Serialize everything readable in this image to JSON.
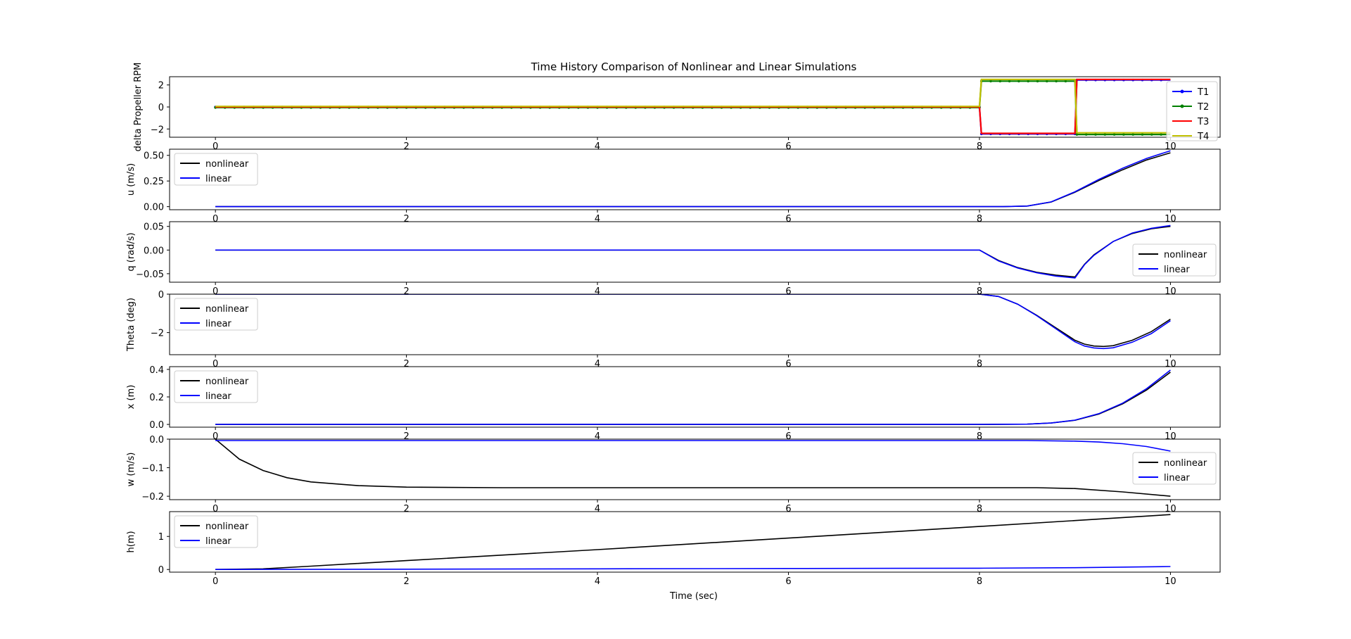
{
  "figure": {
    "title": "Time History Comparison of Nonlinear and Linear Simulations",
    "xlabel": "Time (sec)"
  },
  "chart_data": [
    {
      "type": "line",
      "ylabel": "delta Propeller RPM",
      "xlim": [
        -0.48,
        10.52
      ],
      "ylim": [
        -2.75,
        2.75
      ],
      "xticks": [
        0,
        2,
        4,
        6,
        8,
        10
      ],
      "yticks": [
        2,
        0,
        -2
      ],
      "ytick_labels": [
        "2",
        "0",
        "−2"
      ],
      "legend": {
        "placement": "right",
        "entries": [
          "T1",
          "T2",
          "T3",
          "T4"
        ]
      },
      "series": [
        {
          "name": "T1",
          "color": "#0000ff",
          "marker": true,
          "x": [
            0,
            8,
            8.02,
            9,
            9.02,
            10
          ],
          "y": [
            0,
            0,
            -2.45,
            -2.45,
            2.45,
            2.45
          ]
        },
        {
          "name": "T2",
          "color": "#008000",
          "marker": true,
          "x": [
            0,
            8,
            8.02,
            9,
            9.02,
            10
          ],
          "y": [
            -0.05,
            -0.05,
            2.35,
            2.35,
            -2.5,
            -2.5
          ]
        },
        {
          "name": "T3",
          "color": "#ff0000",
          "marker": false,
          "x": [
            0,
            8,
            8.02,
            9,
            9.02,
            10
          ],
          "y": [
            0,
            0,
            -2.4,
            -2.4,
            2.5,
            2.5
          ]
        },
        {
          "name": "T4",
          "color": "#bfbf00",
          "marker": false,
          "x": [
            0,
            8,
            8.02,
            9,
            9.02,
            10
          ],
          "y": [
            0.05,
            0.05,
            2.5,
            2.5,
            -2.35,
            -2.35
          ]
        }
      ]
    },
    {
      "type": "line",
      "ylabel": "u (m/s)",
      "xlim": [
        -0.48,
        10.52
      ],
      "ylim": [
        -0.03,
        0.56
      ],
      "xticks": [
        0,
        2,
        4,
        6,
        8,
        10
      ],
      "yticks": [
        0.5,
        0.25,
        0.0
      ],
      "ytick_labels": [
        "0.50",
        "0.25",
        "0.00"
      ],
      "legend": {
        "placement": "upper left",
        "entries": [
          "nonlinear",
          "linear"
        ]
      },
      "series": [
        {
          "name": "nonlinear",
          "color": "#000000",
          "x": [
            0,
            8,
            8.25,
            8.5,
            8.75,
            9,
            9.25,
            9.5,
            9.75,
            10
          ],
          "y": [
            0,
            0,
            0.0,
            0.006,
            0.045,
            0.14,
            0.255,
            0.36,
            0.455,
            0.525
          ]
        },
        {
          "name": "linear",
          "color": "#0000ff",
          "x": [
            0,
            8,
            8.25,
            8.5,
            8.75,
            9,
            9.25,
            9.5,
            9.75,
            10
          ],
          "y": [
            0,
            0,
            0.0,
            0.006,
            0.046,
            0.145,
            0.265,
            0.375,
            0.47,
            0.545
          ]
        }
      ]
    },
    {
      "type": "line",
      "ylabel": "q (rad/s)",
      "xlim": [
        -0.48,
        10.52
      ],
      "ylim": [
        -0.068,
        0.06
      ],
      "xticks": [
        0,
        2,
        4,
        6,
        8,
        10
      ],
      "yticks": [
        0.05,
        0.0,
        -0.05
      ],
      "ytick_labels": [
        "0.05",
        "0.00",
        "−0.05"
      ],
      "legend": {
        "placement": "lower right",
        "entries": [
          "nonlinear",
          "linear"
        ]
      },
      "series": [
        {
          "name": "nonlinear",
          "color": "#000000",
          "x": [
            0,
            8,
            8.2,
            8.4,
            8.6,
            8.8,
            9.0,
            9.1,
            9.2,
            9.4,
            9.6,
            9.8,
            10
          ],
          "y": [
            0,
            0,
            -0.022,
            -0.037,
            -0.047,
            -0.053,
            -0.057,
            -0.03,
            -0.01,
            0.018,
            0.035,
            0.045,
            0.05
          ]
        },
        {
          "name": "linear",
          "color": "#0000ff",
          "x": [
            0,
            8,
            8.2,
            8.4,
            8.6,
            8.8,
            9.0,
            9.1,
            9.2,
            9.4,
            9.6,
            9.8,
            10
          ],
          "y": [
            0,
            0,
            -0.023,
            -0.038,
            -0.048,
            -0.055,
            -0.059,
            -0.031,
            -0.011,
            0.018,
            0.036,
            0.046,
            0.052
          ]
        }
      ]
    },
    {
      "type": "line",
      "ylabel": "Theta (deg)",
      "xlim": [
        -0.48,
        10.52
      ],
      "ylim": [
        -3.15,
        0.0
      ],
      "xticks": [
        0,
        2,
        4,
        6,
        8,
        10
      ],
      "yticks": [
        0,
        -2
      ],
      "ytick_labels": [
        "0",
        "−2"
      ],
      "legend": {
        "placement": "upper left",
        "entries": [
          "nonlinear",
          "linear"
        ]
      },
      "series": [
        {
          "name": "nonlinear",
          "color": "#000000",
          "x": [
            0,
            8,
            8.2,
            8.4,
            8.6,
            8.8,
            9.0,
            9.1,
            9.2,
            9.3,
            9.4,
            9.6,
            9.8,
            10
          ],
          "y": [
            0,
            0,
            -0.12,
            -0.52,
            -1.1,
            -1.75,
            -2.4,
            -2.6,
            -2.7,
            -2.72,
            -2.68,
            -2.4,
            -1.95,
            -1.3
          ]
        },
        {
          "name": "linear",
          "color": "#0000ff",
          "x": [
            0,
            8,
            8.2,
            8.4,
            8.6,
            8.8,
            9.0,
            9.1,
            9.2,
            9.3,
            9.4,
            9.6,
            9.8,
            10
          ],
          "y": [
            0,
            0,
            -0.12,
            -0.52,
            -1.12,
            -1.8,
            -2.48,
            -2.7,
            -2.8,
            -2.83,
            -2.79,
            -2.5,
            -2.05,
            -1.38
          ]
        }
      ]
    },
    {
      "type": "line",
      "ylabel": "x (m)",
      "xlim": [
        -0.48,
        10.52
      ],
      "ylim": [
        -0.02,
        0.42
      ],
      "xticks": [
        0,
        2,
        4,
        6,
        8,
        10
      ],
      "yticks": [
        0.4,
        0.2,
        0.0
      ],
      "ytick_labels": [
        "0.4",
        "0.2",
        "0.0"
      ],
      "legend": {
        "placement": "upper left",
        "entries": [
          "nonlinear",
          "linear"
        ]
      },
      "series": [
        {
          "name": "nonlinear",
          "color": "#000000",
          "x": [
            0,
            8,
            8.5,
            8.75,
            9,
            9.25,
            9.5,
            9.75,
            10
          ],
          "y": [
            0,
            0,
            0.002,
            0.01,
            0.03,
            0.075,
            0.15,
            0.25,
            0.38
          ]
        },
        {
          "name": "linear",
          "color": "#0000ff",
          "x": [
            0,
            8,
            8.5,
            8.75,
            9,
            9.25,
            9.5,
            9.75,
            10
          ],
          "y": [
            0,
            0,
            0.002,
            0.01,
            0.031,
            0.078,
            0.155,
            0.26,
            0.395
          ]
        }
      ]
    },
    {
      "type": "line",
      "ylabel": "w (m/s)",
      "xlim": [
        -0.48,
        10.52
      ],
      "ylim": [
        -0.212,
        0.0
      ],
      "xticks": [
        0,
        2,
        4,
        6,
        8,
        10
      ],
      "yticks": [
        0.0,
        -0.1,
        -0.2
      ],
      "ytick_labels": [
        "0.0",
        "−0.1",
        "−0.2"
      ],
      "legend": {
        "placement": "lower right",
        "entries": [
          "nonlinear",
          "linear"
        ]
      },
      "series": [
        {
          "name": "nonlinear",
          "color": "#000000",
          "x": [
            0,
            0.25,
            0.5,
            0.75,
            1,
            1.5,
            2,
            3,
            4,
            6,
            8,
            8.6,
            9,
            9.5,
            10
          ],
          "y": [
            0,
            -0.07,
            -0.11,
            -0.135,
            -0.15,
            -0.163,
            -0.168,
            -0.17,
            -0.17,
            -0.17,
            -0.17,
            -0.17,
            -0.173,
            -0.185,
            -0.2
          ]
        },
        {
          "name": "linear",
          "color": "#0000ff",
          "x": [
            0,
            2,
            4,
            6,
            8,
            8.5,
            9,
            9.25,
            9.5,
            9.75,
            10
          ],
          "y": [
            -0.005,
            -0.005,
            -0.005,
            -0.005,
            -0.005,
            -0.005,
            -0.007,
            -0.01,
            -0.016,
            -0.026,
            -0.042
          ]
        }
      ]
    },
    {
      "type": "line",
      "ylabel": "h(m)",
      "xlim": [
        -0.48,
        10.52
      ],
      "ylim": [
        -0.08,
        1.75
      ],
      "xticks": [
        0,
        2,
        4,
        6,
        8,
        10
      ],
      "yticks": [
        1,
        0
      ],
      "ytick_labels": [
        "1",
        "0"
      ],
      "legend": {
        "placement": "upper left",
        "entries": [
          "nonlinear",
          "linear"
        ]
      },
      "series": [
        {
          "name": "nonlinear",
          "color": "#000000",
          "x": [
            0,
            0.5,
            1,
            2,
            4,
            6,
            8,
            9,
            10
          ],
          "y": [
            0,
            0.02,
            0.1,
            0.27,
            0.6,
            0.95,
            1.3,
            1.48,
            1.66
          ]
        },
        {
          "name": "linear",
          "color": "#0000ff",
          "x": [
            0,
            2,
            4,
            6,
            8,
            9,
            10
          ],
          "y": [
            0,
            0.01,
            0.02,
            0.03,
            0.04,
            0.055,
            0.09
          ]
        }
      ]
    }
  ]
}
